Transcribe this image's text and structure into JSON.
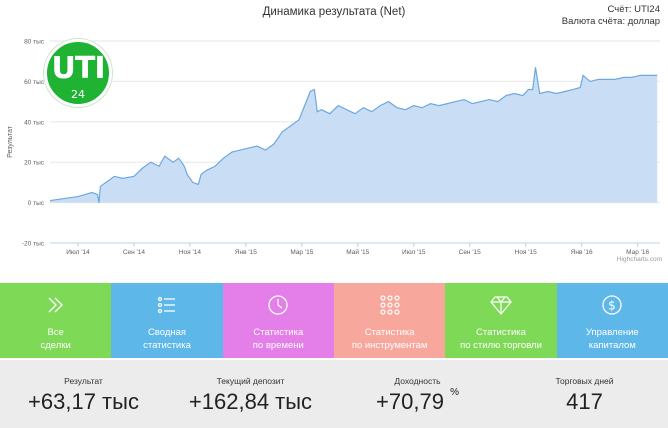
{
  "header": {
    "title": "Динамика результата (Net)",
    "account_line": "Счёт: UTI24",
    "currency_line": "Валюта счёта: доллар"
  },
  "logo": {
    "main": "UTI",
    "sub": "24"
  },
  "chart_data": {
    "type": "area",
    "title": "Динамика результата (Net)",
    "ylabel": "Результат",
    "xlabel": "",
    "ylim": [
      -20,
      80
    ],
    "y_ticks": [
      -20,
      0,
      20,
      40,
      60,
      80
    ],
    "y_tick_labels": [
      "-20 тыс",
      "0 тыс",
      "20 тыс",
      "40 тыс",
      "60 тыс",
      "80 тыс"
    ],
    "x_tick_labels": [
      "Июл '14",
      "Сен '14",
      "Ноя '14",
      "Янв '15",
      "Мар '15",
      "Май '15",
      "Июл '15",
      "Сен '15",
      "Ноя '15",
      "Янв '16",
      "Мар '16"
    ],
    "x_tick_months": [
      1,
      3,
      5,
      7,
      9,
      11,
      13,
      15,
      17,
      19,
      21
    ],
    "series": [
      {
        "months": [
          0,
          0.5,
          1,
          1.5,
          1.7,
          1.75,
          1.8,
          2.0,
          2.3,
          2.6,
          3.0,
          3.3,
          3.6,
          3.9,
          4.1,
          4.4,
          4.6,
          4.8,
          4.9,
          5.1,
          5.3,
          5.4,
          5.6,
          5.9,
          6.2,
          6.5,
          6.8,
          7.1,
          7.4,
          7.7,
          8.0,
          8.3,
          8.6,
          8.9,
          9.1,
          9.3,
          9.45,
          9.55,
          9.7,
          10.0,
          10.3,
          10.6,
          10.9,
          11.2,
          11.5,
          11.8,
          12.1,
          12.4,
          12.7,
          13.0,
          13.3,
          13.6,
          13.9,
          14.2,
          14.5,
          14.8,
          15.1,
          15.4,
          15.7,
          16.0,
          16.3,
          16.6,
          16.9,
          17.1,
          17.25,
          17.35,
          17.5,
          17.8,
          18.1,
          18.4,
          18.7,
          18.95,
          19.05,
          19.3,
          19.6,
          19.9,
          20.2,
          20.5,
          20.8,
          21.1,
          21.4,
          21.7
        ],
        "values": [
          1,
          2,
          3,
          5,
          4,
          0,
          8,
          10,
          13,
          12,
          13,
          17,
          20,
          18,
          23,
          20,
          22,
          18,
          14,
          10,
          9,
          14,
          16,
          18,
          22,
          25,
          26,
          27,
          28,
          26,
          29,
          35,
          38,
          41,
          48,
          55,
          56,
          45,
          46,
          44,
          48,
          46,
          44,
          47,
          45,
          48,
          50,
          47,
          46,
          48,
          47,
          49,
          48,
          49,
          50,
          51,
          49,
          50,
          51,
          50,
          53,
          54,
          53,
          56,
          56,
          67,
          54,
          55,
          54,
          55,
          56,
          57,
          63,
          60,
          61,
          61,
          61,
          62,
          62,
          63,
          63,
          63
        ]
      }
    ],
    "color": "#6ea8de",
    "fill": "#c6dcf4",
    "grid": true,
    "legend": "none"
  },
  "credit": "Highcharts.com",
  "tiles": [
    {
      "line1": "Все",
      "line2": "сделки",
      "color": "#7ed957",
      "icon": "chevrons-right-icon"
    },
    {
      "line1": "Сводная",
      "line2": "статистика",
      "color": "#5db7e8",
      "icon": "list-icon"
    },
    {
      "line1": "Статистика",
      "line2": "по времени",
      "color": "#e47ee8",
      "icon": "clock-icon"
    },
    {
      "line1": "Статистика",
      "line2": "по инструментам",
      "color": "#f7a79c",
      "icon": "grid-dots-icon"
    },
    {
      "line1": "Статистика",
      "line2": "по стилю торговли",
      "color": "#7ed957",
      "icon": "diamond-icon"
    },
    {
      "line1": "Управление",
      "line2": "капиталом",
      "color": "#5db7e8",
      "icon": "dollar-coin-icon"
    }
  ],
  "stats": [
    {
      "label": "Результат",
      "value": "+63,17 тыс",
      "suffix": ""
    },
    {
      "label": "Текущий депозит",
      "value": "+162,84 тыс",
      "suffix": ""
    },
    {
      "label": "Доходность",
      "value": "+70,79",
      "suffix": "%"
    },
    {
      "label": "Торговых дней",
      "value": "417",
      "suffix": ""
    }
  ]
}
